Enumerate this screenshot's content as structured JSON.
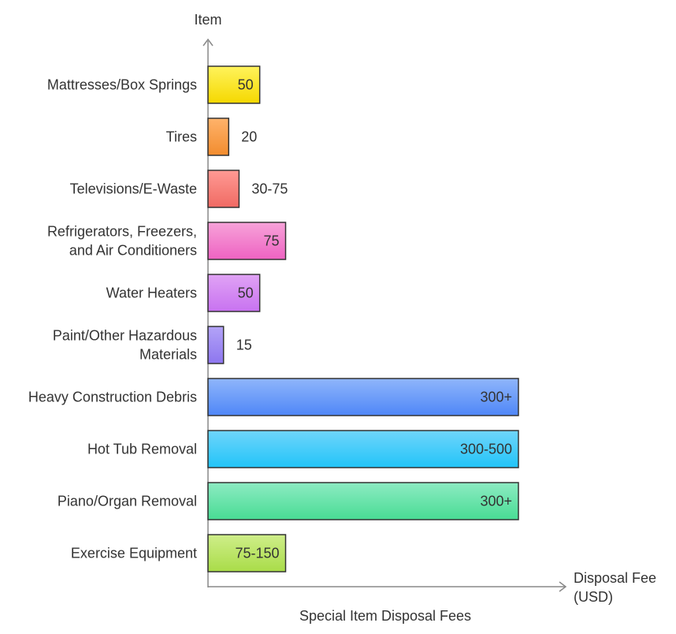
{
  "chart_data": {
    "type": "bar",
    "orientation": "horizontal",
    "title": "Special Item Disposal Fees",
    "ylabel": "Item",
    "xlabel": [
      "Disposal Fee",
      "(USD)"
    ],
    "categories": [
      [
        "Mattresses/Box Springs"
      ],
      [
        "Tires"
      ],
      [
        "Televisions/E-Waste"
      ],
      [
        "Refrigerators, Freezers,",
        "and Air Conditioners"
      ],
      [
        "Water Heaters"
      ],
      [
        "Paint/Other Hazardous",
        "Materials"
      ],
      [
        "Heavy Construction Debris"
      ],
      [
        "Hot Tub Removal"
      ],
      [
        "Piano/Organ Removal"
      ],
      [
        "Exercise Equipment"
      ]
    ],
    "values": [
      50,
      20,
      30,
      75,
      50,
      15,
      300,
      300,
      300,
      75
    ],
    "data_labels": [
      "50",
      "20",
      "30-75",
      "75",
      "50",
      "15",
      "300+",
      "300-500",
      "300+",
      "75-150"
    ],
    "colors": [
      [
        "#fff35c",
        "#f5d800"
      ],
      [
        "#ffb36b",
        "#f28c2e"
      ],
      [
        "#ff9a94",
        "#f06a63"
      ],
      [
        "#f7a3d9",
        "#ee62c2"
      ],
      [
        "#e0a3f5",
        "#c872f0"
      ],
      [
        "#b3a3f7",
        "#8d76ef"
      ],
      [
        "#8fb6fb",
        "#4f86f7"
      ],
      [
        "#6fd5fb",
        "#22c4f8"
      ],
      [
        "#8debc3",
        "#48dc94"
      ],
      [
        "#cfee8a",
        "#a9dc48"
      ]
    ],
    "bar_stroke": "#333333",
    "axis_color": "#888888",
    "xlim": [
      0,
      300
    ],
    "grid": false,
    "legend": "none"
  }
}
